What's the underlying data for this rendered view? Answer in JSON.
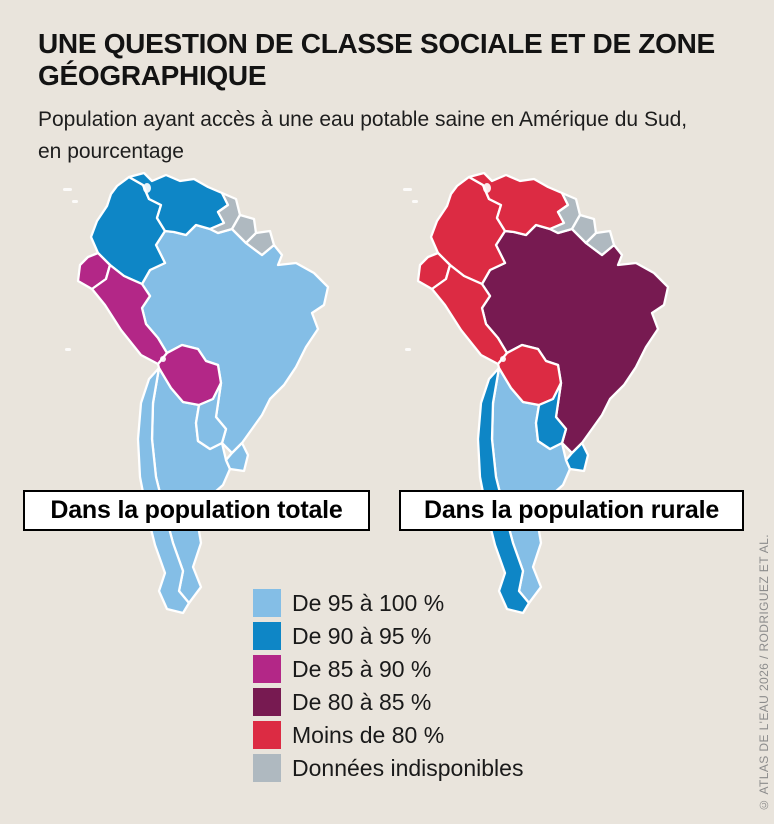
{
  "header": {
    "title": "UNE QUESTION DE CLASSE SOCIALE ET DE ZONE GÉOGRAPHIQUE",
    "subtitle": "Population ayant accès à une eau potable saine en Amérique du Sud, en pourcentage"
  },
  "maps": [
    {
      "label": "Dans la population totale",
      "countries": {
        "colombia": "90-95",
        "venezuela": "90-95",
        "guyana": "no-data",
        "suriname": "no-data",
        "french_guiana": "no-data",
        "ecuador": "85-90",
        "peru": "85-90",
        "bolivia": "85-90",
        "brazil": "95-100",
        "paraguay": "95-100",
        "uruguay": "95-100",
        "argentina": "95-100",
        "chile": "95-100"
      }
    },
    {
      "label": "Dans la population rurale",
      "countries": {
        "colombia": "less-80",
        "venezuela": "less-80",
        "guyana": "no-data",
        "suriname": "no-data",
        "french_guiana": "no-data",
        "ecuador": "less-80",
        "peru": "less-80",
        "bolivia": "less-80",
        "brazil": "80-85",
        "paraguay": "90-95",
        "uruguay": "90-95",
        "argentina": "95-100",
        "chile": "90-95"
      }
    }
  ],
  "legend": {
    "items": [
      {
        "key": "95-100",
        "label": "De 95 à 100 %",
        "color": "#84BEE6"
      },
      {
        "key": "90-95",
        "label": "De 90 à 95 %",
        "color": "#0E86C6"
      },
      {
        "key": "85-90",
        "label": "De 85 à 90 %",
        "color": "#B32787"
      },
      {
        "key": "80-85",
        "label": "De 80 à 85 %",
        "color": "#771A51"
      },
      {
        "key": "less-80",
        "label": "Moins de 80 %",
        "color": "#DC2B43"
      },
      {
        "key": "no-data",
        "label": "Données indisponibles",
        "color": "#AFB9C0"
      }
    ]
  },
  "credit": "© ATLAS DE L'EAU 2026 / RODRIGUEZ ET AL.",
  "colors": {
    "background": "#E9E4DC",
    "country_border": "#FFFFFF",
    "text": "#1A1A1A",
    "credit_text": "#8C8C8C"
  }
}
